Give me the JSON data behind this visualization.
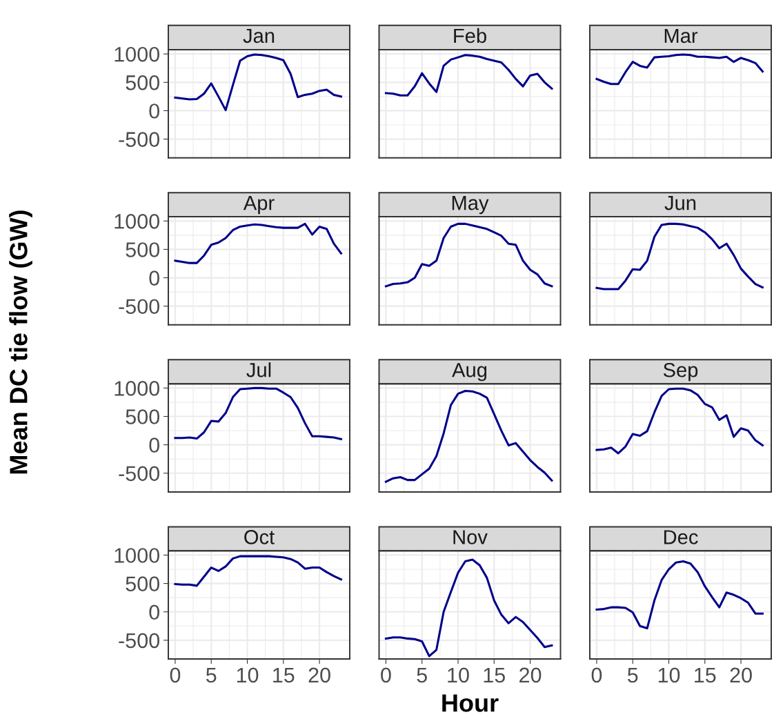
{
  "chart_data": [
    {
      "type": "line",
      "title": "Jan",
      "ylabel": "Mean DC tie flow (GW)",
      "x": [
        0,
        1,
        2,
        3,
        4,
        5,
        6,
        7,
        8,
        9,
        10,
        11,
        12,
        13,
        14,
        15,
        16,
        17,
        18,
        19,
        20,
        21,
        22,
        23
      ],
      "series": [
        {
          "color": "#00008b",
          "values": [
            230,
            215,
            200,
            205,
            300,
            480,
            250,
            10,
            450,
            880,
            960,
            990,
            980,
            960,
            930,
            890,
            650,
            240,
            280,
            300,
            350,
            370,
            280,
            250
          ]
        }
      ],
      "xlim": [
        -0.95,
        24.2
      ],
      "ylim": [
        -830,
        1075
      ],
      "xticks": [
        0,
        5,
        10,
        15,
        20
      ],
      "yticks": [
        -500,
        0,
        500,
        1000
      ],
      "grid": true,
      "tick_labels": "y"
    },
    {
      "type": "line",
      "title": "Feb",
      "x": [
        0,
        1,
        2,
        3,
        4,
        5,
        6,
        7,
        8,
        9,
        10,
        11,
        12,
        13,
        14,
        15,
        16,
        17,
        18,
        19,
        20,
        21,
        22,
        23
      ],
      "series": [
        {
          "color": "#00008b",
          "values": [
            310,
            300,
            270,
            270,
            430,
            660,
            480,
            330,
            790,
            900,
            940,
            980,
            970,
            950,
            910,
            880,
            850,
            720,
            560,
            430,
            620,
            650,
            500,
            390
          ]
        }
      ],
      "xlim": [
        -0.95,
        24.2
      ],
      "ylim": [
        -830,
        1075
      ],
      "xticks": [
        0,
        5,
        10,
        15,
        20
      ],
      "yticks": [
        -500,
        0,
        500,
        1000
      ],
      "grid": true,
      "tick_labels": false
    },
    {
      "type": "line",
      "title": "Mar",
      "x": [
        0,
        1,
        2,
        3,
        4,
        5,
        6,
        7,
        8,
        9,
        10,
        11,
        12,
        13,
        14,
        15,
        16,
        17,
        18,
        19,
        20,
        21,
        22,
        23
      ],
      "series": [
        {
          "color": "#00008b",
          "values": [
            560,
            510,
            470,
            470,
            680,
            860,
            790,
            760,
            940,
            950,
            960,
            980,
            990,
            980,
            950,
            950,
            940,
            930,
            950,
            860,
            930,
            890,
            840,
            690
          ]
        }
      ],
      "xlim": [
        -0.95,
        24.2
      ],
      "ylim": [
        -830,
        1075
      ],
      "xticks": [
        0,
        5,
        10,
        15,
        20
      ],
      "yticks": [
        -500,
        0,
        500,
        1000
      ],
      "grid": true,
      "tick_labels": false
    },
    {
      "type": "line",
      "title": "Apr",
      "x": [
        0,
        1,
        2,
        3,
        4,
        5,
        6,
        7,
        8,
        9,
        10,
        11,
        12,
        13,
        14,
        15,
        16,
        17,
        18,
        19,
        20,
        21,
        22,
        23
      ],
      "series": [
        {
          "color": "#00008b",
          "values": [
            300,
            280,
            260,
            260,
            390,
            580,
            620,
            700,
            840,
            900,
            920,
            940,
            930,
            910,
            890,
            880,
            880,
            880,
            950,
            760,
            900,
            860,
            600,
            430
          ]
        }
      ],
      "xlim": [
        -0.95,
        24.2
      ],
      "ylim": [
        -830,
        1075
      ],
      "xticks": [
        0,
        5,
        10,
        15,
        20
      ],
      "yticks": [
        -500,
        0,
        500,
        1000
      ],
      "grid": true,
      "tick_labels": "y"
    },
    {
      "type": "line",
      "title": "May",
      "x": [
        0,
        1,
        2,
        3,
        4,
        5,
        6,
        7,
        8,
        9,
        10,
        11,
        12,
        13,
        14,
        15,
        16,
        17,
        18,
        19,
        20,
        21,
        22,
        23
      ],
      "series": [
        {
          "color": "#00008b",
          "values": [
            -150,
            -110,
            -100,
            -80,
            0,
            240,
            210,
            300,
            700,
            900,
            950,
            950,
            920,
            890,
            860,
            800,
            740,
            600,
            580,
            300,
            140,
            60,
            -100,
            -150
          ]
        }
      ],
      "xlim": [
        -0.95,
        24.2
      ],
      "ylim": [
        -830,
        1075
      ],
      "xticks": [
        0,
        5,
        10,
        15,
        20
      ],
      "yticks": [
        -500,
        0,
        500,
        1000
      ],
      "grid": true,
      "tick_labels": false
    },
    {
      "type": "line",
      "title": "Jun",
      "x": [
        0,
        1,
        2,
        3,
        4,
        5,
        6,
        7,
        8,
        9,
        10,
        11,
        12,
        13,
        14,
        15,
        16,
        17,
        18,
        19,
        20,
        21,
        22,
        23
      ],
      "series": [
        {
          "color": "#00008b",
          "values": [
            -180,
            -200,
            -200,
            -200,
            -50,
            150,
            140,
            300,
            720,
            930,
            950,
            950,
            940,
            910,
            880,
            800,
            680,
            520,
            600,
            400,
            160,
            20,
            -110,
            -170
          ]
        }
      ],
      "xlim": [
        -0.95,
        24.2
      ],
      "ylim": [
        -830,
        1075
      ],
      "xticks": [
        0,
        5,
        10,
        15,
        20
      ],
      "yticks": [
        -500,
        0,
        500,
        1000
      ],
      "grid": true,
      "tick_labels": false
    },
    {
      "type": "line",
      "title": "Jul",
      "x": [
        0,
        1,
        2,
        3,
        4,
        5,
        6,
        7,
        8,
        9,
        10,
        11,
        12,
        13,
        14,
        15,
        16,
        17,
        18,
        19,
        20,
        21,
        22,
        23
      ],
      "series": [
        {
          "color": "#00008b",
          "values": [
            120,
            120,
            130,
            110,
            220,
            420,
            410,
            560,
            840,
            980,
            990,
            1000,
            1000,
            990,
            990,
            920,
            840,
            650,
            380,
            150,
            150,
            140,
            130,
            100
          ]
        }
      ],
      "xlim": [
        -0.95,
        24.2
      ],
      "ylim": [
        -830,
        1075
      ],
      "xticks": [
        0,
        5,
        10,
        15,
        20
      ],
      "yticks": [
        -500,
        0,
        500,
        1000
      ],
      "grid": true,
      "tick_labels": "y"
    },
    {
      "type": "line",
      "title": "Aug",
      "x": [
        0,
        1,
        2,
        3,
        4,
        5,
        6,
        7,
        8,
        9,
        10,
        11,
        12,
        13,
        14,
        15,
        16,
        17,
        18,
        19,
        20,
        21,
        22,
        23
      ],
      "series": [
        {
          "color": "#00008b",
          "values": [
            -650,
            -590,
            -570,
            -620,
            -620,
            -520,
            -420,
            -200,
            200,
            700,
            900,
            950,
            940,
            900,
            830,
            540,
            250,
            -10,
            30,
            -120,
            -270,
            -390,
            -490,
            -630
          ]
        }
      ],
      "xlim": [
        -0.95,
        24.2
      ],
      "ylim": [
        -830,
        1075
      ],
      "xticks": [
        0,
        5,
        10,
        15,
        20
      ],
      "yticks": [
        -500,
        0,
        500,
        1000
      ],
      "grid": true,
      "tick_labels": false
    },
    {
      "type": "line",
      "title": "Sep",
      "x": [
        0,
        1,
        2,
        3,
        4,
        5,
        6,
        7,
        8,
        9,
        10,
        11,
        12,
        13,
        14,
        15,
        16,
        17,
        18,
        19,
        20,
        21,
        22,
        23
      ],
      "series": [
        {
          "color": "#00008b",
          "values": [
            -90,
            -80,
            -50,
            -150,
            -30,
            190,
            160,
            240,
            570,
            860,
            980,
            990,
            990,
            960,
            880,
            720,
            660,
            440,
            520,
            140,
            290,
            250,
            80,
            -10
          ]
        }
      ],
      "xlim": [
        -0.95,
        24.2
      ],
      "ylim": [
        -830,
        1075
      ],
      "xticks": [
        0,
        5,
        10,
        15,
        20
      ],
      "yticks": [
        -500,
        0,
        500,
        1000
      ],
      "grid": true,
      "tick_labels": false
    },
    {
      "type": "line",
      "title": "Oct",
      "x": [
        0,
        1,
        2,
        3,
        4,
        5,
        6,
        7,
        8,
        9,
        10,
        11,
        12,
        13,
        14,
        15,
        16,
        17,
        18,
        19,
        20,
        21,
        22,
        23
      ],
      "series": [
        {
          "color": "#00008b",
          "values": [
            490,
            480,
            480,
            460,
            620,
            780,
            720,
            800,
            940,
            980,
            980,
            980,
            980,
            980,
            970,
            960,
            930,
            870,
            760,
            780,
            780,
            700,
            630,
            570
          ]
        }
      ],
      "xlim": [
        -0.95,
        24.2
      ],
      "ylim": [
        -830,
        1075
      ],
      "xticks": [
        0,
        5,
        10,
        15,
        20
      ],
      "yticks": [
        -500,
        0,
        500,
        1000
      ],
      "grid": true
    },
    {
      "type": "line",
      "title": "Nov",
      "xlabel": "Hour",
      "x": [
        0,
        1,
        2,
        3,
        4,
        5,
        6,
        7,
        8,
        9,
        10,
        11,
        12,
        13,
        14,
        15,
        16,
        17,
        18,
        19,
        20,
        21,
        22,
        23
      ],
      "series": [
        {
          "color": "#00008b",
          "values": [
            -470,
            -450,
            -450,
            -470,
            -480,
            -520,
            -780,
            -670,
            0,
            350,
            690,
            890,
            920,
            820,
            600,
            200,
            -50,
            -200,
            -90,
            -180,
            -320,
            -460,
            -620,
            -590
          ]
        }
      ],
      "xlim": [
        -0.95,
        24.2
      ],
      "ylim": [
        -830,
        1075
      ],
      "xticks": [
        0,
        5,
        10,
        15,
        20
      ],
      "yticks": [
        -500,
        0,
        500,
        1000
      ],
      "grid": true,
      "tick_labels": "x"
    },
    {
      "type": "line",
      "title": "Dec",
      "x": [
        0,
        1,
        2,
        3,
        4,
        5,
        6,
        7,
        8,
        9,
        10,
        11,
        12,
        13,
        14,
        15,
        16,
        17,
        18,
        19,
        20,
        21,
        22,
        23
      ],
      "series": [
        {
          "color": "#00008b",
          "values": [
            40,
            50,
            80,
            80,
            70,
            -10,
            -250,
            -290,
            200,
            560,
            750,
            870,
            890,
            850,
            700,
            450,
            260,
            80,
            340,
            300,
            240,
            160,
            -30,
            -30
          ]
        }
      ],
      "xlim": [
        -0.95,
        24.2
      ],
      "ylim": [
        -830,
        1075
      ],
      "xticks": [
        0,
        5,
        10,
        15,
        20
      ],
      "yticks": [
        -500,
        0,
        500,
        1000
      ],
      "grid": true,
      "tick_labels": "x"
    }
  ]
}
